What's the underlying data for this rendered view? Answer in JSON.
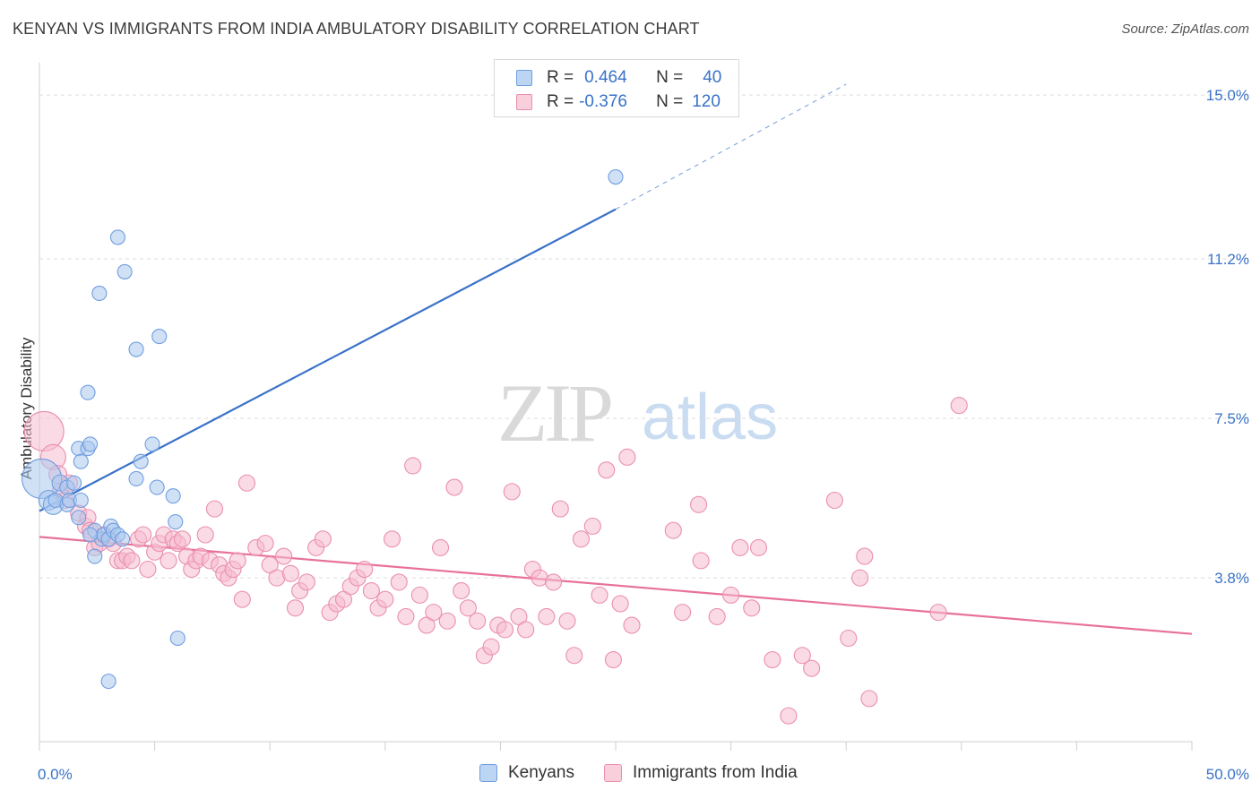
{
  "header": {
    "title": "KENYAN VS IMMIGRANTS FROM INDIA AMBULATORY DISABILITY CORRELATION CHART",
    "source": "Source: ZipAtlas.com"
  },
  "watermark": {
    "zip": "ZIP",
    "atlas": "atlas"
  },
  "legend": {
    "rows": [
      {
        "r_label": "R =",
        "r_value": "0.464",
        "n_label": "N =",
        "n_value": "40"
      },
      {
        "r_label": "R =",
        "r_value": "-0.376",
        "n_label": "N =",
        "n_value": "120"
      }
    ]
  },
  "bottom_legend": {
    "kenyans": "Kenyans",
    "india": "Immigrants from India"
  },
  "colors": {
    "blue_fill": "#a9c8ef",
    "blue_stroke": "#6f9ee0",
    "blue_line": "#3a72c8",
    "pink_fill": "#f6bccd",
    "pink_stroke": "#ea8fae",
    "pink_line": "#e8719b",
    "tick_label": "#3a72c8",
    "grid": "#dcdcdc"
  },
  "chart_data": {
    "type": "scatter",
    "title": "KENYAN VS IMMIGRANTS FROM INDIA AMBULATORY DISABILITY CORRELATION CHART",
    "xlabel": "",
    "ylabel": "Ambulatory Disability",
    "xlim": [
      0,
      50
    ],
    "ylim": [
      0,
      15.75
    ],
    "x_tick_labels": [
      {
        "value": 0,
        "label": "0.0%"
      },
      {
        "value": 50,
        "label": "50.0%"
      }
    ],
    "y_tick_labels": [
      {
        "value": 3.8,
        "label": "3.8%"
      },
      {
        "value": 7.5,
        "label": "7.5%"
      },
      {
        "value": 11.2,
        "label": "11.2%"
      },
      {
        "value": 15.0,
        "label": "15.0%"
      }
    ],
    "x_minor_ticks": [
      0,
      5,
      10,
      15,
      20,
      25,
      30,
      35,
      40,
      45,
      50
    ],
    "grid": "horizontal dashed",
    "series": [
      {
        "name": "Kenyans",
        "points": [
          [
            0.1,
            6.1,
            22
          ],
          [
            0.4,
            5.6,
            11
          ],
          [
            0.6,
            5.5,
            11
          ],
          [
            0.7,
            5.6,
            8
          ],
          [
            0.9,
            6.0,
            9
          ],
          [
            1.2,
            5.5,
            8
          ],
          [
            1.2,
            5.9,
            8
          ],
          [
            1.3,
            5.6,
            8
          ],
          [
            1.5,
            6.0,
            8
          ],
          [
            1.7,
            5.2,
            8
          ],
          [
            1.8,
            5.6,
            8
          ],
          [
            1.7,
            6.8,
            8
          ],
          [
            1.8,
            6.5,
            8
          ],
          [
            2.1,
            6.8,
            8
          ],
          [
            2.2,
            6.9,
            8
          ],
          [
            2.1,
            8.1,
            8
          ],
          [
            2.4,
            4.9,
            8
          ],
          [
            2.4,
            4.3,
            8
          ],
          [
            2.7,
            4.7,
            8
          ],
          [
            2.8,
            4.8,
            8
          ],
          [
            3.0,
            4.7,
            8
          ],
          [
            3.1,
            5.0,
            8
          ],
          [
            3.2,
            4.9,
            8
          ],
          [
            3.4,
            4.8,
            8
          ],
          [
            3.6,
            4.7,
            8
          ],
          [
            3.4,
            11.7,
            8
          ],
          [
            3.7,
            10.9,
            8
          ],
          [
            2.6,
            10.4,
            8
          ],
          [
            4.2,
            9.1,
            8
          ],
          [
            5.2,
            9.4,
            8
          ],
          [
            4.4,
            6.5,
            8
          ],
          [
            4.9,
            6.9,
            8
          ],
          [
            4.2,
            6.1,
            8
          ],
          [
            5.1,
            5.9,
            8
          ],
          [
            5.8,
            5.7,
            8
          ],
          [
            5.9,
            5.1,
            8
          ],
          [
            6.0,
            2.4,
            8
          ],
          [
            3.0,
            1.4,
            8
          ],
          [
            25.0,
            13.1,
            8
          ],
          [
            2.2,
            4.8,
            8
          ]
        ],
        "trend": {
          "x0": 0,
          "y0": 5.35,
          "x1": 25,
          "y1": 12.35,
          "dashed_to_x": 35,
          "dashed_to_y": 15.25
        }
      },
      {
        "name": "Immigrants from India",
        "points": [
          [
            0.2,
            7.2,
            22
          ],
          [
            0.6,
            6.6,
            14
          ],
          [
            0.8,
            6.2,
            10
          ],
          [
            0.9,
            5.8,
            9
          ],
          [
            1.1,
            5.6,
            9
          ],
          [
            1.3,
            6.0,
            9
          ],
          [
            1.7,
            5.3,
            9
          ],
          [
            2.0,
            5.0,
            9
          ],
          [
            2.1,
            5.2,
            9
          ],
          [
            2.2,
            4.9,
            9
          ],
          [
            2.4,
            4.5,
            9
          ],
          [
            2.6,
            4.6,
            9
          ],
          [
            2.8,
            4.8,
            9
          ],
          [
            3.0,
            4.7,
            9
          ],
          [
            3.2,
            4.6,
            9
          ],
          [
            3.4,
            4.2,
            9
          ],
          [
            3.6,
            4.2,
            9
          ],
          [
            3.8,
            4.3,
            9
          ],
          [
            4.0,
            4.2,
            9
          ],
          [
            4.3,
            4.7,
            9
          ],
          [
            4.5,
            4.8,
            9
          ],
          [
            4.7,
            4.0,
            9
          ],
          [
            5.0,
            4.4,
            9
          ],
          [
            5.2,
            4.6,
            9
          ],
          [
            5.4,
            4.8,
            9
          ],
          [
            5.6,
            4.2,
            9
          ],
          [
            5.8,
            4.7,
            9
          ],
          [
            6.0,
            4.6,
            9
          ],
          [
            6.2,
            4.7,
            9
          ],
          [
            6.4,
            4.3,
            9
          ],
          [
            6.6,
            4.0,
            9
          ],
          [
            6.8,
            4.2,
            9
          ],
          [
            7.0,
            4.3,
            9
          ],
          [
            7.2,
            4.8,
            9
          ],
          [
            7.4,
            4.2,
            9
          ],
          [
            7.6,
            5.4,
            9
          ],
          [
            7.8,
            4.1,
            9
          ],
          [
            8.0,
            3.9,
            9
          ],
          [
            8.2,
            3.8,
            9
          ],
          [
            8.4,
            4.0,
            9
          ],
          [
            8.6,
            4.2,
            9
          ],
          [
            8.8,
            3.3,
            9
          ],
          [
            9.0,
            6.0,
            9
          ],
          [
            9.4,
            4.5,
            9
          ],
          [
            9.8,
            4.6,
            9
          ],
          [
            10.0,
            4.1,
            9
          ],
          [
            10.3,
            3.8,
            9
          ],
          [
            10.6,
            4.3,
            9
          ],
          [
            10.9,
            3.9,
            9
          ],
          [
            11.1,
            3.1,
            9
          ],
          [
            11.3,
            3.5,
            9
          ],
          [
            11.6,
            3.7,
            9
          ],
          [
            12.0,
            4.5,
            9
          ],
          [
            12.3,
            4.7,
            9
          ],
          [
            12.6,
            3.0,
            9
          ],
          [
            12.9,
            3.2,
            9
          ],
          [
            13.2,
            3.3,
            9
          ],
          [
            13.5,
            3.6,
            9
          ],
          [
            13.8,
            3.8,
            9
          ],
          [
            14.1,
            4.0,
            9
          ],
          [
            14.4,
            3.5,
            9
          ],
          [
            14.7,
            3.1,
            9
          ],
          [
            15.0,
            3.3,
            9
          ],
          [
            15.3,
            4.7,
            9
          ],
          [
            15.6,
            3.7,
            9
          ],
          [
            15.9,
            2.9,
            9
          ],
          [
            16.2,
            6.4,
            9
          ],
          [
            16.5,
            3.4,
            9
          ],
          [
            16.8,
            2.7,
            9
          ],
          [
            17.1,
            3.0,
            9
          ],
          [
            17.4,
            4.5,
            9
          ],
          [
            17.7,
            2.8,
            9
          ],
          [
            18.0,
            5.9,
            9
          ],
          [
            18.3,
            3.5,
            9
          ],
          [
            18.6,
            3.1,
            9
          ],
          [
            19.0,
            2.8,
            9
          ],
          [
            19.3,
            2.0,
            9
          ],
          [
            19.6,
            2.2,
            9
          ],
          [
            19.9,
            2.7,
            9
          ],
          [
            20.2,
            2.6,
            9
          ],
          [
            20.5,
            5.8,
            9
          ],
          [
            20.8,
            2.9,
            9
          ],
          [
            21.1,
            2.6,
            9
          ],
          [
            21.4,
            4.0,
            9
          ],
          [
            21.7,
            3.8,
            9
          ],
          [
            22.0,
            2.9,
            9
          ],
          [
            22.3,
            3.7,
            9
          ],
          [
            22.6,
            5.4,
            9
          ],
          [
            22.9,
            2.8,
            9
          ],
          [
            23.2,
            2.0,
            9
          ],
          [
            23.5,
            4.7,
            9
          ],
          [
            24.0,
            5.0,
            9
          ],
          [
            24.3,
            3.4,
            9
          ],
          [
            24.6,
            6.3,
            9
          ],
          [
            24.9,
            1.9,
            9
          ],
          [
            25.2,
            3.2,
            9
          ],
          [
            25.5,
            6.6,
            9
          ],
          [
            25.7,
            2.7,
            9
          ],
          [
            27.5,
            4.9,
            9
          ],
          [
            27.9,
            3.0,
            9
          ],
          [
            28.7,
            4.2,
            9
          ],
          [
            28.6,
            5.5,
            9
          ],
          [
            29.4,
            2.9,
            9
          ],
          [
            30.0,
            3.4,
            9
          ],
          [
            30.4,
            4.5,
            9
          ],
          [
            30.9,
            3.1,
            9
          ],
          [
            31.2,
            4.5,
            9
          ],
          [
            31.8,
            1.9,
            9
          ],
          [
            33.1,
            2.0,
            9
          ],
          [
            33.5,
            1.7,
            9
          ],
          [
            34.5,
            5.6,
            9
          ],
          [
            35.1,
            2.4,
            9
          ],
          [
            35.8,
            4.3,
            9
          ],
          [
            36.0,
            1.0,
            9
          ],
          [
            35.6,
            3.8,
            9
          ],
          [
            39.9,
            7.8,
            9
          ],
          [
            39.0,
            3.0,
            9
          ],
          [
            32.5,
            0.6,
            9
          ]
        ],
        "trend": {
          "x0": 0,
          "y0": 4.75,
          "x1": 50,
          "y1": 2.5
        }
      }
    ]
  }
}
